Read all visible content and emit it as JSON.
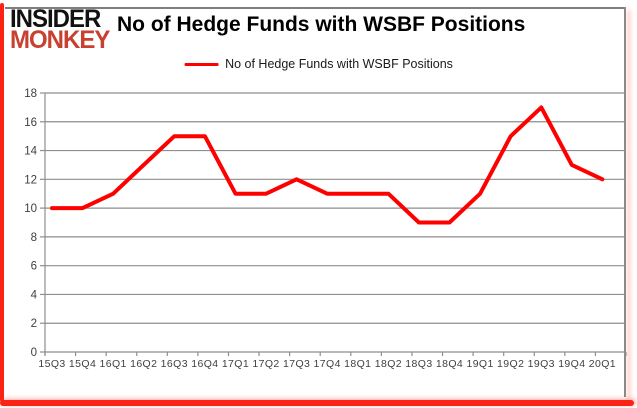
{
  "brand": {
    "line1": "INSIDER",
    "line2": "MONKEY"
  },
  "header": {
    "title": "No of Hedge Funds with WSBF Positions"
  },
  "legend": {
    "label": "No of Hedge Funds with WSBF Positions"
  },
  "colors": {
    "series": "#ff0000",
    "grid": "#8e8e8e",
    "axis_text": "#3f3f3f",
    "logo_red": "#c8402f",
    "frame_red": "#fb2313",
    "frame_gray": "#7f7f7f"
  },
  "chart_data": {
    "type": "line",
    "title": "No of Hedge Funds with WSBF Positions",
    "categories": [
      "15Q3",
      "15Q4",
      "16Q1",
      "16Q2",
      "16Q3",
      "16Q4",
      "17Q1",
      "17Q2",
      "17Q3",
      "17Q4",
      "18Q1",
      "18Q2",
      "18Q3",
      "18Q4",
      "19Q1",
      "19Q2",
      "19Q3",
      "19Q4",
      "20Q1"
    ],
    "series": [
      {
        "name": "No of Hedge Funds with WSBF Positions",
        "values": [
          10,
          10,
          11,
          13,
          15,
          15,
          11,
          11,
          12,
          11,
          11,
          11,
          9,
          9,
          11,
          15,
          17,
          13,
          12
        ]
      }
    ],
    "xlabel": "",
    "ylabel": "",
    "ylim": [
      0,
      18
    ],
    "ytick_step": 2,
    "grid": true,
    "legend_position": "top-center"
  }
}
